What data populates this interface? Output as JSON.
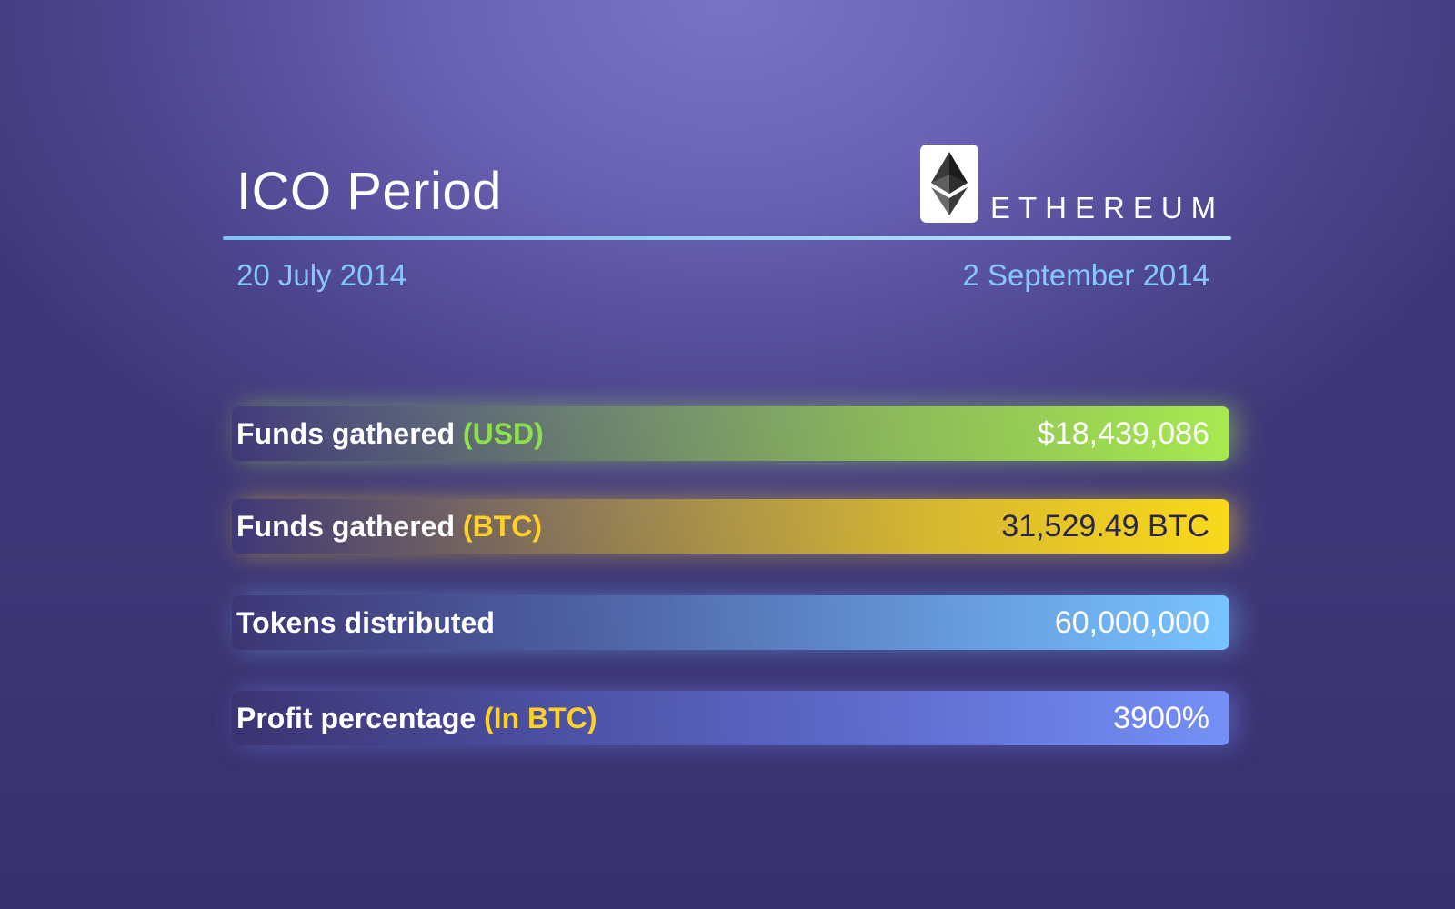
{
  "header": {
    "title": "ICO Period",
    "brand": "ETHEREUM",
    "logo_icon": "ethereum-diamond-icon"
  },
  "dates": {
    "start": "20 July 2014",
    "end": "2 September 2014"
  },
  "stats": [
    {
      "label": "Funds gathered",
      "qualifier": "(USD)",
      "value": "$18,439,086",
      "color": "#a7ea4f"
    },
    {
      "label": "Funds gathered",
      "qualifier": "(BTC)",
      "value": "31,529.49 BTC",
      "color": "#f9d91a"
    },
    {
      "label": "Tokens distributed",
      "qualifier": "",
      "value": "60,000,000",
      "color": "#78c3ff"
    },
    {
      "label": "Profit percentage",
      "qualifier": "(In BTC)",
      "value": "3900%",
      "color": "#7490f6"
    }
  ],
  "colors": {
    "background": "#5a52a4",
    "date_text": "#86c8ff",
    "divider": "#9fd3ff"
  }
}
